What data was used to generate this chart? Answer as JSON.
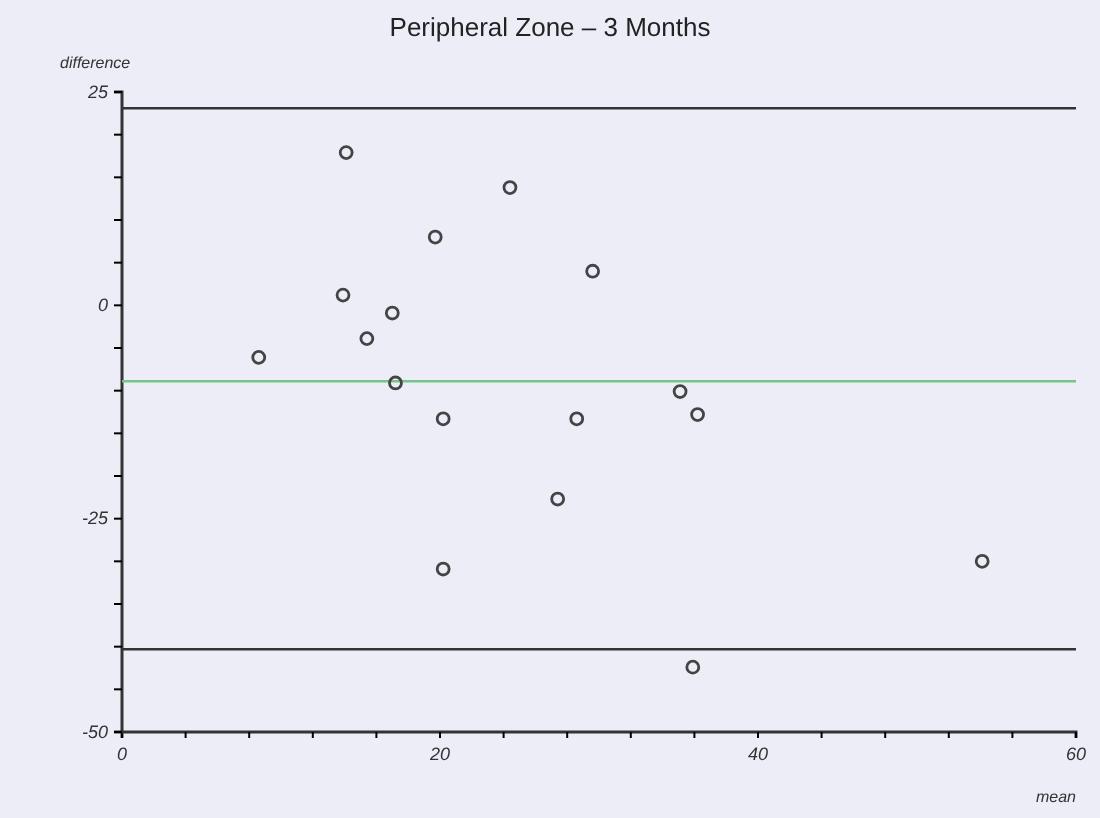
{
  "chart_data": {
    "type": "scatter",
    "title": "Peripheral Zone – 3 Months",
    "xlabel": "mean",
    "ylabel": "difference",
    "x": [
      8.6,
      14.1,
      13.9,
      17.0,
      15.4,
      17.2,
      19.7,
      20.2,
      24.4,
      29.6,
      28.6,
      27.4,
      35.1,
      36.2,
      20.2,
      54.1,
      35.9
    ],
    "series": [
      {
        "color": "#444444",
        "values": [
          -6.1,
          17.9,
          1.2,
          -0.9,
          -3.9,
          -9.1,
          8.0,
          -13.3,
          13.8,
          4.0,
          -13.3,
          -22.7,
          -10.1,
          -12.8,
          -30.9,
          -30.0,
          -42.4
        ]
      }
    ],
    "xlim": [
      0,
      60
    ],
    "ylim": [
      -50,
      25
    ],
    "xticks": [
      0,
      {
        "value": 4,
        "label": null
      },
      {
        "value": 8,
        "label": null
      },
      {
        "value": 12,
        "label": null
      },
      {
        "value": 16,
        "label": null
      },
      20,
      {
        "value": 24,
        "label": null
      },
      {
        "value": 28,
        "label": null
      },
      {
        "value": 32,
        "label": null
      },
      {
        "value": 36,
        "label": null
      },
      40,
      {
        "value": 44,
        "label": null
      },
      {
        "value": 48,
        "label": null
      },
      {
        "value": 52,
        "label": null
      },
      {
        "value": 56,
        "label": null
      },
      60
    ],
    "yticks": [
      -50,
      {
        "value": -45,
        "label": null
      },
      {
        "value": -40,
        "label": null
      },
      {
        "value": -35,
        "label": null
      },
      {
        "value": -30,
        "label": null
      },
      -25,
      {
        "value": -20,
        "label": null
      },
      {
        "value": -15,
        "label": null
      },
      {
        "value": -10,
        "label": null
      },
      {
        "value": -5,
        "label": null
      },
      0,
      {
        "value": 5,
        "label": null
      },
      {
        "value": 10,
        "label": null
      },
      {
        "value": 15,
        "label": null
      },
      {
        "value": 20,
        "label": null
      },
      25
    ],
    "ref_lines": [
      {
        "axis": "y",
        "value": 23.1,
        "color": "#333333"
      },
      {
        "axis": "y",
        "value": -8.9,
        "color": "#7fbf8f"
      },
      {
        "axis": "y",
        "value": -40.3,
        "color": "#333333"
      }
    ],
    "marker": "circle"
  }
}
